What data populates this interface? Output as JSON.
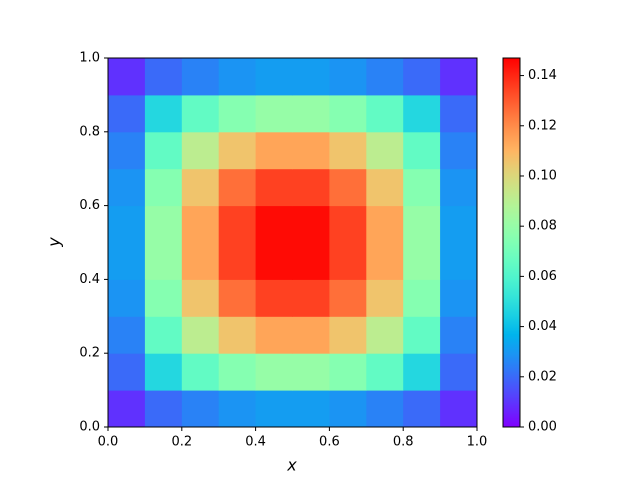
{
  "chart_data": {
    "type": "heatmap",
    "x_label": "x",
    "y_label": "y",
    "colormap": "rainbow",
    "x": [
      0.05,
      0.15,
      0.25,
      0.35,
      0.45,
      0.55,
      0.65,
      0.75,
      0.85,
      0.95
    ],
    "y": [
      0.05,
      0.15,
      0.25,
      0.35,
      0.45,
      0.55,
      0.65,
      0.75,
      0.85,
      0.95
    ],
    "z": [
      [
        0.009,
        0.02,
        0.025,
        0.029,
        0.031,
        0.031,
        0.029,
        0.025,
        0.02,
        0.009
      ],
      [
        0.02,
        0.047,
        0.065,
        0.075,
        0.08,
        0.08,
        0.075,
        0.065,
        0.047,
        0.02
      ],
      [
        0.025,
        0.065,
        0.091,
        0.106,
        0.114,
        0.114,
        0.106,
        0.091,
        0.065,
        0.025
      ],
      [
        0.029,
        0.075,
        0.106,
        0.126,
        0.135,
        0.135,
        0.126,
        0.106,
        0.075,
        0.029
      ],
      [
        0.031,
        0.08,
        0.114,
        0.135,
        0.145,
        0.145,
        0.135,
        0.114,
        0.08,
        0.031
      ],
      [
        0.031,
        0.08,
        0.114,
        0.135,
        0.145,
        0.145,
        0.135,
        0.114,
        0.08,
        0.031
      ],
      [
        0.029,
        0.075,
        0.106,
        0.126,
        0.135,
        0.135,
        0.126,
        0.106,
        0.075,
        0.029
      ],
      [
        0.025,
        0.065,
        0.091,
        0.106,
        0.114,
        0.114,
        0.106,
        0.091,
        0.065,
        0.025
      ],
      [
        0.02,
        0.047,
        0.065,
        0.075,
        0.08,
        0.08,
        0.075,
        0.065,
        0.047,
        0.02
      ],
      [
        0.009,
        0.02,
        0.025,
        0.029,
        0.031,
        0.031,
        0.029,
        0.025,
        0.02,
        0.009
      ]
    ],
    "xlim": [
      0,
      1
    ],
    "ylim": [
      0,
      1
    ],
    "xticks": [
      {
        "value": 0,
        "label": "0.0"
      },
      {
        "value": 0.2,
        "label": "0.2"
      },
      {
        "value": 0.4,
        "label": "0.4"
      },
      {
        "value": 0.6,
        "label": "0.6"
      },
      {
        "value": 0.8,
        "label": "0.8"
      },
      {
        "value": 1,
        "label": "1.0"
      }
    ],
    "yticks": [
      {
        "value": 0,
        "label": "0.0"
      },
      {
        "value": 0.2,
        "label": "0.2"
      },
      {
        "value": 0.4,
        "label": "0.4"
      },
      {
        "value": 0.6,
        "label": "0.6"
      },
      {
        "value": 0.8,
        "label": "0.8"
      },
      {
        "value": 1,
        "label": "1.0"
      }
    ],
    "clim": [
      0,
      0.147
    ],
    "cticks": [
      {
        "value": 0,
        "label": "0.00"
      },
      {
        "value": 0.02,
        "label": "0.02"
      },
      {
        "value": 0.04,
        "label": "0.04"
      },
      {
        "value": 0.06,
        "label": "0.06"
      },
      {
        "value": 0.08,
        "label": "0.08"
      },
      {
        "value": 0.1,
        "label": "0.10"
      },
      {
        "value": 0.12,
        "label": "0.12"
      },
      {
        "value": 0.14,
        "label": "0.14"
      }
    ]
  }
}
